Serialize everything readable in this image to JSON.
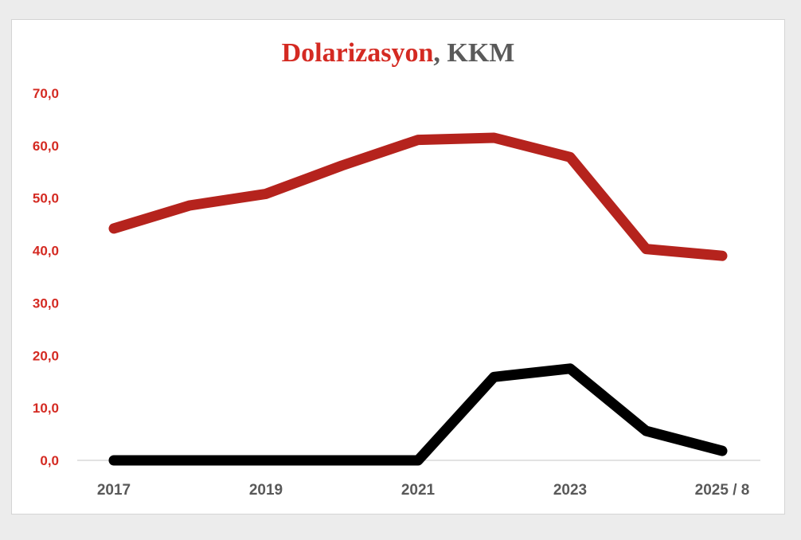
{
  "chart_data": {
    "type": "line",
    "title_parts": [
      {
        "text": "Dolarizasyon",
        "color": "#d42a22"
      },
      {
        "text": ", KKM",
        "color": "#5a5a5a"
      }
    ],
    "xlabel": "",
    "ylabel": "",
    "x": [
      2017,
      2018,
      2019,
      2020,
      2021,
      2022,
      2023,
      2024,
      2025
    ],
    "x_tick_labels": [
      {
        "x": 2017,
        "label": "2017"
      },
      {
        "x": 2019,
        "label": "2019"
      },
      {
        "x": 2021,
        "label": "2021"
      },
      {
        "x": 2023,
        "label": "2023"
      },
      {
        "x": 2025,
        "label": "2025 / 8"
      }
    ],
    "y_ticks": [
      0,
      10,
      20,
      30,
      40,
      50,
      60,
      70
    ],
    "y_tick_labels": [
      "0,0",
      "10,0",
      "20,0",
      "30,0",
      "40,0",
      "50,0",
      "60,0",
      "70,0"
    ],
    "ylim": [
      0,
      70
    ],
    "xlim": [
      2017,
      2025
    ],
    "grid": false,
    "legend": "none",
    "series": [
      {
        "color": "#b5231d",
        "values": [
          44.2,
          48.6,
          50.8,
          56.2,
          61.1,
          61.5,
          57.8,
          40.3,
          39.0
        ]
      },
      {
        "color": "#000000",
        "values": [
          0,
          0,
          0,
          0,
          0,
          15.9,
          17.5,
          5.6,
          1.8
        ]
      }
    ],
    "colors": {
      "tick_text_y": "#d42a22",
      "tick_text_x": "#595959",
      "axis_line": "#d9d9d9"
    }
  }
}
